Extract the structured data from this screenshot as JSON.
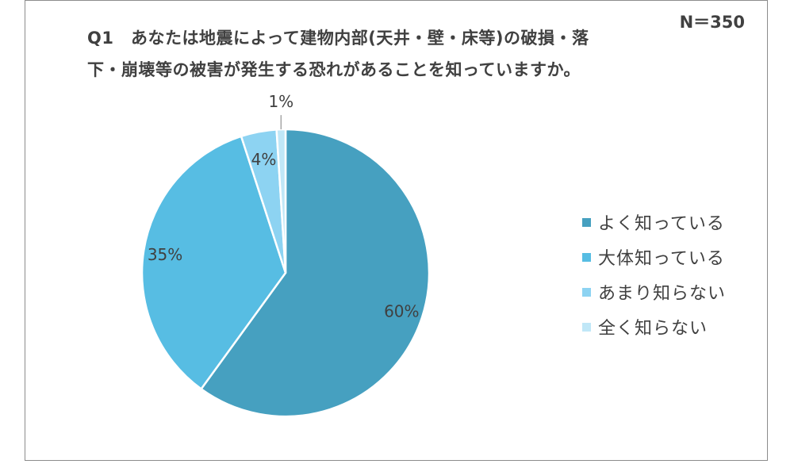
{
  "n_label": "N＝350",
  "title_lines": [
    "Q1　あなたは地震によって建物内部(天井・壁・床等)の破損・落",
    "下・崩壊等の被害が発生する恐れがあることを知っていますか。"
  ],
  "colors": {
    "slice_0": "#46a0c0",
    "slice_1": "#57bde3",
    "slice_2": "#8dd3f2",
    "slice_3": "#c0e7f7",
    "label_text": "#404040"
  },
  "chart_data": {
    "type": "pie",
    "title": "Q1　あなたは地震によって建物内部(天井・壁・床等)の破損・落下・崩壊等の被害が発生する恐れがあることを知っていますか。",
    "categories": [
      "よく知っている",
      "大体知っている",
      "あまり知らない",
      "全く知らない"
    ],
    "values": [
      60,
      35,
      4,
      1
    ],
    "labels": [
      "60%",
      "35%",
      "4%",
      "1%"
    ],
    "legend_position": "right"
  }
}
